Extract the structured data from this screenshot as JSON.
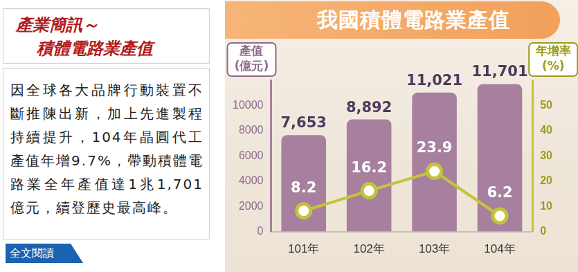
{
  "sidebar": {
    "title": [
      "產業簡訊～",
      "積體電路業產值"
    ],
    "body": "因全球各大品牌行動裝置不斷推陳出新，加上先進製程持續提升，104年晶圓代工產值年增9.7%，帶動積體電路業全年產值達1兆1,701億元，續登歷史最高峰。",
    "link": "全文閱讀"
  },
  "chart_data": {
    "type": "bar",
    "title": "我國積體電路業產值",
    "categories": [
      "101年",
      "102年",
      "103年",
      "104年"
    ],
    "series": [
      {
        "type": "bar",
        "color": "#a8809f",
        "axis": "y",
        "values": [
          7653,
          8892,
          11021,
          11701
        ],
        "value_labels": [
          "7,653",
          "8,892",
          "11,021",
          "11,701"
        ]
      },
      {
        "type": "line",
        "color": "#c4c43a",
        "marker": "circle",
        "axis": "y2",
        "values": [
          8.2,
          16.2,
          23.9,
          6.2
        ]
      }
    ],
    "y_label": [
      "產值",
      "(億元)"
    ],
    "y2_label": [
      "年增率",
      "(%)"
    ],
    "ylim": [
      0,
      12000
    ],
    "yticks": [
      0,
      2000,
      4000,
      6000,
      8000,
      10000
    ],
    "y2lim": [
      0,
      60
    ],
    "y2ticks": [
      0,
      10,
      20,
      30,
      40,
      50
    ],
    "grid": false,
    "data_labels": true
  }
}
